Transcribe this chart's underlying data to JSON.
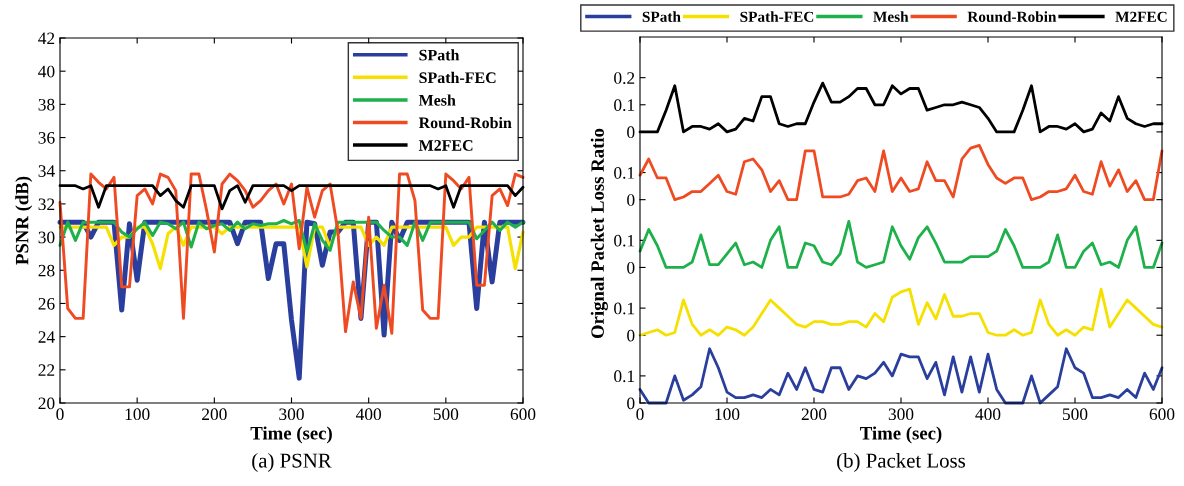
{
  "chart_data": [
    {
      "type": "line",
      "title": "(a) PSNR",
      "xlabel": "Time (sec)",
      "ylabel": "PSNR (dB)",
      "x": [
        0,
        10,
        20,
        30,
        40,
        50,
        60,
        70,
        80,
        90,
        100,
        110,
        120,
        130,
        140,
        150,
        160,
        170,
        180,
        190,
        200,
        210,
        220,
        230,
        240,
        250,
        260,
        270,
        280,
        290,
        300,
        310,
        320,
        330,
        340,
        350,
        360,
        370,
        380,
        390,
        400,
        410,
        420,
        430,
        440,
        450,
        460,
        470,
        480,
        490,
        500,
        510,
        520,
        530,
        540,
        550,
        560,
        570,
        580,
        590,
        600
      ],
      "xlim": [
        0,
        600
      ],
      "xticks": [
        0,
        100,
        200,
        300,
        400,
        500,
        600
      ],
      "ylim": [
        20,
        42
      ],
      "yticks": [
        20,
        22,
        24,
        26,
        28,
        30,
        32,
        34,
        36,
        38,
        40,
        42
      ],
      "grid": false,
      "legend": "top right",
      "marker": "none",
      "line_style": "solid",
      "series": [
        {
          "name": "SPath",
          "color": "#2a3f9d",
          "values": [
            30.9,
            30.9,
            30.9,
            30.9,
            30.0,
            30.9,
            30.9,
            30.9,
            25.6,
            30.8,
            27.4,
            30.9,
            30.9,
            30.9,
            30.9,
            30.9,
            30.9,
            30.9,
            30.9,
            30.9,
            30.9,
            30.9,
            30.9,
            29.6,
            30.9,
            30.9,
            30.9,
            27.5,
            29.6,
            29.6,
            25.0,
            21.5,
            30.9,
            30.8,
            28.3,
            30.3,
            30.3,
            30.9,
            30.9,
            25.1,
            30.9,
            30.9,
            24.1,
            30.9,
            29.8,
            30.9,
            30.9,
            30.9,
            30.9,
            30.9,
            30.9,
            30.9,
            30.9,
            30.9,
            25.7,
            30.9,
            27.3,
            30.9,
            30.9,
            30.9,
            30.9
          ]
        },
        {
          "name": "SPath-FEC",
          "color": "#f5e000",
          "values": [
            30.6,
            30.6,
            30.6,
            30.6,
            30.6,
            30.6,
            30.6,
            29.5,
            30.0,
            30.0,
            30.6,
            30.6,
            29.6,
            28.1,
            30.2,
            30.6,
            29.5,
            30.6,
            30.6,
            30.6,
            30.6,
            30.2,
            30.6,
            30.6,
            30.6,
            30.6,
            30.6,
            30.6,
            30.6,
            30.6,
            30.6,
            30.6,
            28.2,
            30.6,
            30.6,
            29.4,
            30.6,
            30.6,
            30.6,
            30.6,
            29.5,
            30.0,
            29.5,
            30.6,
            30.6,
            30.6,
            30.6,
            30.6,
            30.6,
            30.6,
            30.6,
            29.5,
            30.0,
            30.0,
            30.6,
            30.6,
            30.6,
            30.6,
            30.6,
            28.1,
            30.3
          ]
        },
        {
          "name": "Mesh",
          "color": "#1eb14b",
          "values": [
            29.5,
            30.9,
            29.8,
            30.9,
            30.9,
            30.9,
            30.9,
            30.9,
            30.3,
            30.0,
            30.5,
            30.9,
            30.1,
            30.9,
            30.8,
            30.5,
            30.9,
            29.4,
            30.9,
            30.5,
            30.7,
            30.8,
            30.4,
            30.9,
            30.5,
            30.8,
            30.7,
            30.8,
            30.8,
            31.0,
            30.8,
            31.0,
            29.1,
            30.8,
            29.8,
            29.2,
            30.9,
            30.9,
            30.9,
            30.9,
            30.9,
            30.9,
            30.4,
            30.0,
            30.0,
            29.5,
            30.9,
            29.8,
            30.9,
            30.9,
            30.9,
            30.9,
            30.9,
            30.9,
            29.9,
            30.4,
            30.9,
            30.4,
            30.9,
            30.6,
            30.9
          ]
        },
        {
          "name": "Round-Robin",
          "color": "#ef4b23",
          "values": [
            32.1,
            25.7,
            25.1,
            25.1,
            33.8,
            33.3,
            32.9,
            33.6,
            27.0,
            27.0,
            32.5,
            32.9,
            32.0,
            33.8,
            33.6,
            32.8,
            25.1,
            33.8,
            33.8,
            31.6,
            29.1,
            33.2,
            33.8,
            33.4,
            32.8,
            31.8,
            32.2,
            32.8,
            33.2,
            32.0,
            33.2,
            29.3,
            33.0,
            31.2,
            32.8,
            33.2,
            30.4,
            24.3,
            27.3,
            25.1,
            31.2,
            24.5,
            27.1,
            24.2,
            33.8,
            33.8,
            32.2,
            25.6,
            25.1,
            25.1,
            33.8,
            33.4,
            32.9,
            33.6,
            27.1,
            27.1,
            32.5,
            32.9,
            31.9,
            33.8,
            33.6
          ]
        },
        {
          "name": "M2FEC",
          "color": "#000000",
          "values": [
            33.1,
            33.1,
            33.1,
            32.9,
            33.1,
            31.8,
            33.1,
            33.1,
            33.1,
            33.1,
            33.1,
            33.1,
            33.1,
            32.5,
            32.9,
            32.2,
            31.8,
            33.1,
            33.1,
            33.1,
            33.1,
            31.7,
            32.8,
            33.1,
            32.1,
            33.1,
            33.1,
            33.1,
            33.1,
            33.1,
            32.8,
            33.1,
            33.1,
            33.1,
            33.1,
            33.1,
            33.1,
            33.1,
            33.1,
            33.1,
            33.1,
            33.1,
            33.1,
            33.1,
            33.1,
            33.1,
            33.1,
            33.1,
            33.1,
            32.9,
            33.1,
            31.8,
            33.1,
            33.1,
            33.1,
            33.1,
            33.1,
            33.1,
            33.1,
            32.5,
            33.0
          ]
        }
      ]
    },
    {
      "type": "line",
      "x": [
        0,
        10,
        20,
        30,
        40,
        50,
        60,
        70,
        80,
        90,
        100,
        110,
        120,
        130,
        140,
        150,
        160,
        170,
        180,
        190,
        200,
        210,
        220,
        230,
        240,
        250,
        260,
        270,
        280,
        290,
        300,
        310,
        320,
        330,
        340,
        350,
        360,
        370,
        380,
        390,
        400,
        410,
        420,
        430,
        440,
        450,
        460,
        470,
        480,
        490,
        500,
        510,
        520,
        530,
        540,
        550,
        560,
        570,
        580,
        590,
        600
      ],
      "xlim": [
        0,
        600
      ],
      "xticks": [
        0,
        100,
        200,
        300,
        400,
        500,
        600
      ],
      "ylim": [
        0,
        0.35
      ],
      "yticks": [
        0,
        0.1,
        0.2
      ],
      "tick_labels": "y",
      "grid": false,
      "legend": "top",
      "marker": "none",
      "line_style": "solid",
      "series": [
        {
          "name": "M2FEC",
          "color": "#000000",
          "values": [
            0.0,
            0.0,
            0.0,
            0.08,
            0.17,
            0.0,
            0.02,
            0.02,
            0.01,
            0.03,
            0.0,
            0.01,
            0.05,
            0.04,
            0.13,
            0.13,
            0.03,
            0.02,
            0.03,
            0.03,
            0.11,
            0.18,
            0.11,
            0.11,
            0.13,
            0.16,
            0.16,
            0.1,
            0.1,
            0.17,
            0.14,
            0.16,
            0.16,
            0.08,
            0.09,
            0.1,
            0.1,
            0.11,
            0.1,
            0.09,
            0.05,
            0.0,
            0.0,
            0.0,
            0.08,
            0.17,
            0.0,
            0.02,
            0.02,
            0.01,
            0.03,
            0.0,
            0.01,
            0.07,
            0.04,
            0.13,
            0.05,
            0.03,
            0.02,
            0.03,
            0.03
          ]
        }
      ]
    },
    {
      "type": "line",
      "x": [
        0,
        10,
        20,
        30,
        40,
        50,
        60,
        70,
        80,
        90,
        100,
        110,
        120,
        130,
        140,
        150,
        160,
        170,
        180,
        190,
        200,
        210,
        220,
        230,
        240,
        250,
        260,
        270,
        280,
        290,
        300,
        310,
        320,
        330,
        340,
        350,
        360,
        370,
        380,
        390,
        400,
        410,
        420,
        430,
        440,
        450,
        460,
        470,
        480,
        490,
        500,
        510,
        520,
        530,
        540,
        550,
        560,
        570,
        580,
        590,
        600
      ],
      "xlim": [
        0,
        600
      ],
      "xticks": [
        0,
        100,
        200,
        300,
        400,
        500,
        600
      ],
      "ylim": [
        0,
        0.25
      ],
      "yticks": [
        0,
        0.1
      ],
      "tick_labels": "y",
      "grid": false,
      "legend": "top",
      "marker": "none",
      "line_style": "solid",
      "series": [
        {
          "name": "Round-Robin",
          "color": "#ef4b23",
          "values": [
            0.09,
            0.15,
            0.08,
            0.08,
            0.0,
            0.01,
            0.03,
            0.03,
            0.06,
            0.09,
            0.03,
            0.02,
            0.14,
            0.15,
            0.11,
            0.03,
            0.07,
            0.0,
            0.0,
            0.18,
            0.18,
            0.01,
            0.01,
            0.01,
            0.02,
            0.07,
            0.08,
            0.03,
            0.18,
            0.03,
            0.08,
            0.03,
            0.04,
            0.14,
            0.07,
            0.07,
            0.01,
            0.15,
            0.19,
            0.2,
            0.13,
            0.08,
            0.06,
            0.08,
            0.08,
            0.0,
            0.01,
            0.03,
            0.03,
            0.04,
            0.09,
            0.03,
            0.02,
            0.14,
            0.05,
            0.11,
            0.03,
            0.07,
            0.0,
            0.0,
            0.18
          ]
        }
      ]
    },
    {
      "type": "line",
      "ylabel": "Orignal Packet Loss Ratio",
      "x": [
        0,
        10,
        20,
        30,
        40,
        50,
        60,
        70,
        80,
        90,
        100,
        110,
        120,
        130,
        140,
        150,
        160,
        170,
        180,
        190,
        200,
        210,
        220,
        230,
        240,
        250,
        260,
        270,
        280,
        290,
        300,
        310,
        320,
        330,
        340,
        350,
        360,
        370,
        380,
        390,
        400,
        410,
        420,
        430,
        440,
        450,
        460,
        470,
        480,
        490,
        500,
        510,
        520,
        530,
        540,
        550,
        560,
        570,
        580,
        590,
        600
      ],
      "xlim": [
        0,
        600
      ],
      "xticks": [
        0,
        100,
        200,
        300,
        400,
        500,
        600
      ],
      "ylim": [
        0,
        0.25
      ],
      "yticks": [
        0,
        0.1
      ],
      "tick_labels": "y",
      "grid": false,
      "legend": "top",
      "marker": "none",
      "line_style": "solid",
      "series": [
        {
          "name": "Mesh",
          "color": "#1eb14b",
          "values": [
            0.06,
            0.14,
            0.08,
            0.0,
            0.0,
            0.0,
            0.02,
            0.12,
            0.01,
            0.01,
            0.05,
            0.09,
            0.01,
            0.02,
            0.0,
            0.1,
            0.15,
            0.0,
            0.0,
            0.09,
            0.08,
            0.02,
            0.01,
            0.05,
            0.17,
            0.02,
            0.0,
            0.01,
            0.02,
            0.15,
            0.08,
            0.03,
            0.11,
            0.15,
            0.09,
            0.02,
            0.02,
            0.02,
            0.04,
            0.04,
            0.04,
            0.06,
            0.14,
            0.08,
            0.0,
            0.0,
            0.0,
            0.02,
            0.12,
            0.0,
            0.0,
            0.06,
            0.09,
            0.01,
            0.02,
            0.0,
            0.1,
            0.15,
            0.0,
            0.0,
            0.09
          ]
        }
      ]
    },
    {
      "type": "line",
      "x": [
        0,
        10,
        20,
        30,
        40,
        50,
        60,
        70,
        80,
        90,
        100,
        110,
        120,
        130,
        140,
        150,
        160,
        170,
        180,
        190,
        200,
        210,
        220,
        230,
        240,
        250,
        260,
        270,
        280,
        290,
        300,
        310,
        320,
        330,
        340,
        350,
        360,
        370,
        380,
        390,
        400,
        410,
        420,
        430,
        440,
        450,
        460,
        470,
        480,
        490,
        500,
        510,
        520,
        530,
        540,
        550,
        560,
        570,
        580,
        590,
        600
      ],
      "xlim": [
        0,
        600
      ],
      "xticks": [
        0,
        100,
        200,
        300,
        400,
        500,
        600
      ],
      "ylim": [
        0,
        0.25
      ],
      "yticks": [
        0,
        0.1
      ],
      "tick_labels": "y",
      "grid": false,
      "legend": "top",
      "marker": "none",
      "line_style": "solid",
      "series": [
        {
          "name": "SPath-FEC",
          "color": "#f5e000",
          "values": [
            0.0,
            0.01,
            0.02,
            0.0,
            0.01,
            0.13,
            0.04,
            0.0,
            0.02,
            0.0,
            0.03,
            0.02,
            0.0,
            0.03,
            0.08,
            0.13,
            0.1,
            0.07,
            0.04,
            0.03,
            0.05,
            0.05,
            0.04,
            0.04,
            0.05,
            0.05,
            0.03,
            0.08,
            0.05,
            0.14,
            0.16,
            0.17,
            0.04,
            0.12,
            0.06,
            0.15,
            0.07,
            0.07,
            0.08,
            0.08,
            0.01,
            0.0,
            0.0,
            0.02,
            0.0,
            0.01,
            0.13,
            0.04,
            0.0,
            0.02,
            0.0,
            0.03,
            0.02,
            0.17,
            0.03,
            0.08,
            0.13,
            0.1,
            0.07,
            0.04,
            0.03
          ]
        }
      ]
    },
    {
      "type": "line",
      "title": "(b) Packet Loss",
      "xlabel": "Time (sec)",
      "x": [
        0,
        10,
        20,
        30,
        40,
        50,
        60,
        70,
        80,
        90,
        100,
        110,
        120,
        130,
        140,
        150,
        160,
        170,
        180,
        190,
        200,
        210,
        220,
        230,
        240,
        250,
        260,
        270,
        280,
        290,
        300,
        310,
        320,
        330,
        340,
        350,
        360,
        370,
        380,
        390,
        400,
        410,
        420,
        430,
        440,
        450,
        460,
        470,
        480,
        490,
        500,
        510,
        520,
        530,
        540,
        550,
        560,
        570,
        580,
        590,
        600
      ],
      "xlim": [
        0,
        600
      ],
      "xticks": [
        0,
        100,
        200,
        300,
        400,
        500,
        600
      ],
      "ylim": [
        0,
        0.25
      ],
      "yticks": [
        0,
        0.1
      ],
      "grid": false,
      "legend": "top",
      "marker": "none",
      "line_style": "solid",
      "series": [
        {
          "name": "SPath",
          "color": "#2a3f9d",
          "values": [
            0.05,
            0.0,
            0.0,
            0.0,
            0.1,
            0.01,
            0.03,
            0.06,
            0.2,
            0.13,
            0.04,
            0.02,
            0.02,
            0.03,
            0.02,
            0.05,
            0.03,
            0.11,
            0.05,
            0.13,
            0.05,
            0.04,
            0.13,
            0.13,
            0.05,
            0.1,
            0.09,
            0.11,
            0.15,
            0.1,
            0.18,
            0.17,
            0.17,
            0.09,
            0.15,
            0.03,
            0.17,
            0.04,
            0.17,
            0.04,
            0.18,
            0.05,
            0.0,
            0.0,
            0.0,
            0.1,
            0.0,
            0.03,
            0.06,
            0.2,
            0.13,
            0.11,
            0.02,
            0.02,
            0.03,
            0.02,
            0.05,
            0.02,
            0.11,
            0.05,
            0.13
          ]
        }
      ]
    }
  ]
}
